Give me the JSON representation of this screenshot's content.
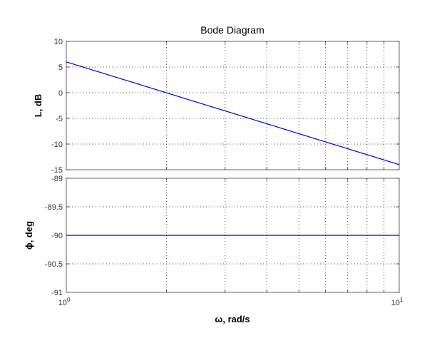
{
  "chart_data": [
    {
      "type": "line",
      "title": "Bode Diagram",
      "ylabel": "L, dB",
      "xlabel": "",
      "xscale": "log",
      "xlim": [
        1,
        10
      ],
      "ylim": [
        -15,
        10
      ],
      "yticks": [
        10,
        5,
        0,
        -5,
        -10,
        -15
      ],
      "ytick_labels": [
        "10",
        "5",
        "0",
        "-5",
        "-10",
        "-15"
      ],
      "grid": true,
      "color": "#0000cc",
      "series": [
        {
          "x": [
            1,
            10
          ],
          "y": [
            6,
            -14
          ]
        }
      ]
    },
    {
      "type": "line",
      "title": "",
      "ylabel": "ϕ, deg",
      "xlabel": "ω, rad/s",
      "xscale": "log",
      "xlim": [
        1,
        10
      ],
      "ylim": [
        -91,
        -89
      ],
      "yticks": [
        -89,
        -89.5,
        -90,
        -90.5,
        -91
      ],
      "ytick_labels": [
        "-89",
        "-89.5",
        "-90",
        "-90.5",
        "-91"
      ],
      "xtick_labels": [
        {
          "base": "10",
          "exp": "0"
        },
        {
          "base": "10",
          "exp": "1"
        }
      ],
      "grid": true,
      "color": "#0000cc",
      "series": [
        {
          "x": [
            1,
            10
          ],
          "y": [
            -90,
            -90
          ]
        }
      ]
    }
  ]
}
